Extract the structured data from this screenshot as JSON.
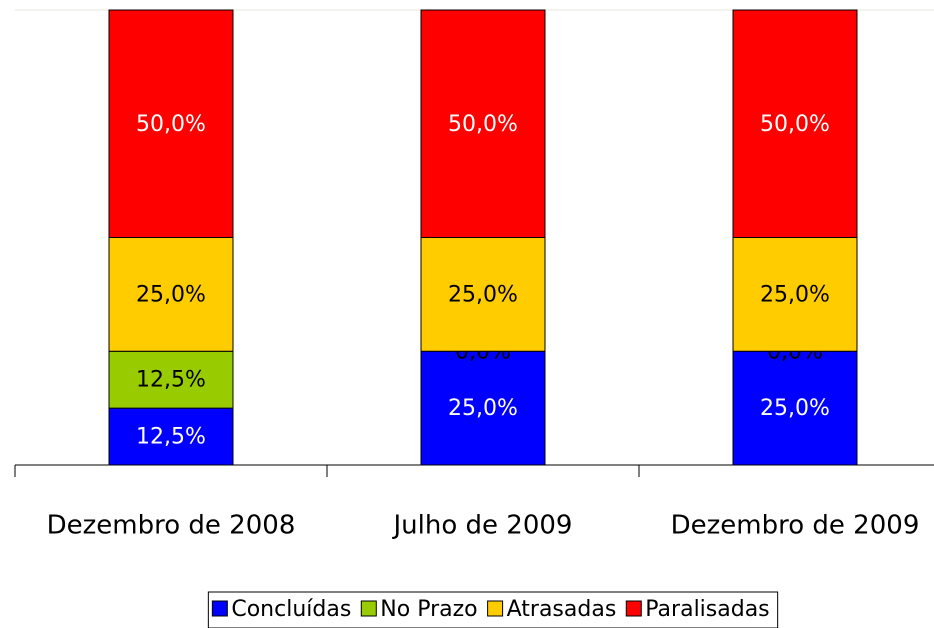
{
  "chart_data": {
    "type": "stacked_bar",
    "categories": [
      "Dezembro de 2008",
      "Julho de 2009",
      "Dezembro de 2009"
    ],
    "series": [
      {
        "name": "Concluídas",
        "color": "#0000ff",
        "values": [
          12.5,
          25,
          25
        ],
        "value_labels": [
          "12,5%",
          "25,0%",
          "25,0%"
        ]
      },
      {
        "name": "No Prazo",
        "color": "#99cc00",
        "values": [
          12.5,
          0,
          0
        ],
        "value_labels": [
          "12,5%",
          "0,0%",
          "0,0%"
        ]
      },
      {
        "name": "Atrasadas",
        "color": "#ffcc00",
        "values": [
          25,
          25,
          25
        ],
        "value_labels": [
          "25,0%",
          "25,0%",
          "25,0%"
        ]
      },
      {
        "name": "Paralisadas",
        "color": "#ff0000",
        "values": [
          50,
          50,
          50
        ],
        "value_labels": [
          "50,0%",
          "50,0%",
          "50,0%"
        ]
      }
    ],
    "ylim": [
      0,
      100
    ],
    "legend": "bottom"
  }
}
